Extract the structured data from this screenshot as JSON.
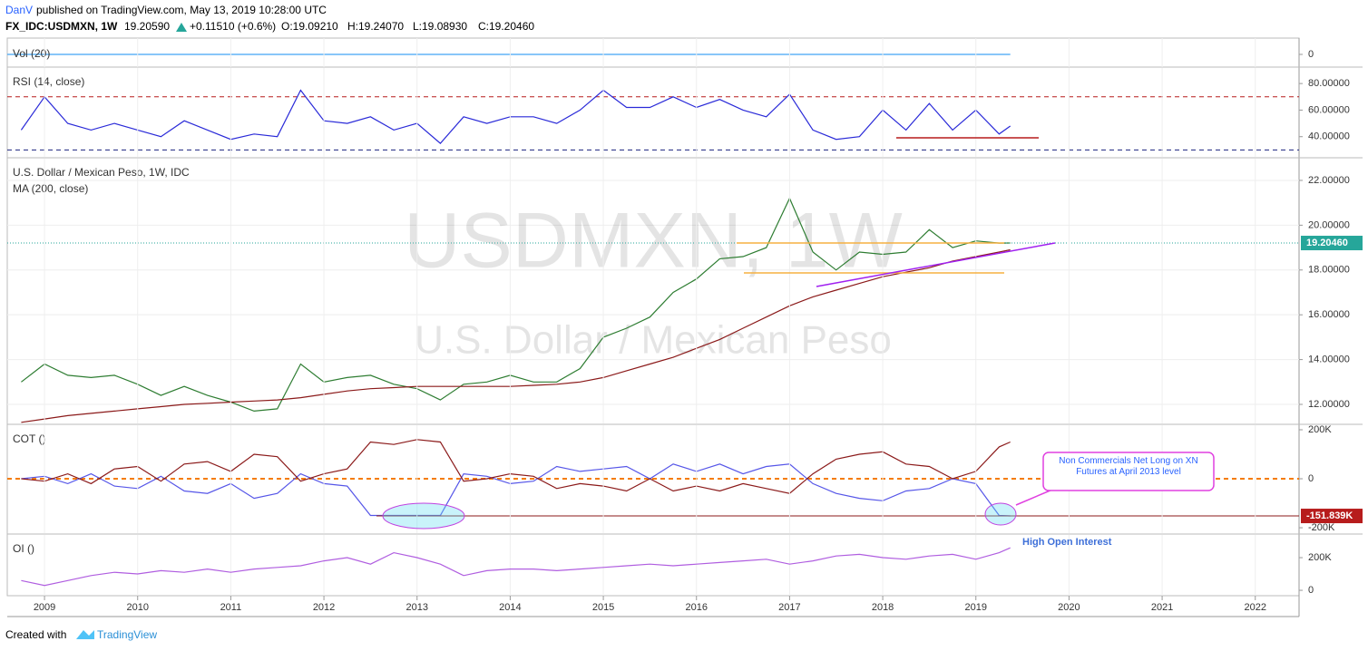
{
  "header": {
    "author": "DanV",
    "published": "published on TradingView.com, May 13, 2019 10:28:00 UTC",
    "symbol": "FX_IDC:USDMXN, 1W",
    "price": "19.20590",
    "change": "+0.11510 (+0.6%)",
    "open": "O:19.09210",
    "high": "H:19.24070",
    "low": "L:19.08930",
    "close": "C:19.20460"
  },
  "footer": {
    "prefix": "Created with",
    "brand": "TradingView"
  },
  "chart_data": [
    {
      "type": "line",
      "title": "Vol (20)",
      "xlim": [
        2008.6,
        2022.47
      ],
      "ylim": [
        -14,
        18
      ],
      "yticks": [
        0
      ],
      "series": [
        {
          "color": "#42a5f5",
          "x": [
            2008.6,
            2019.37
          ],
          "values": [
            0,
            0
          ]
        }
      ]
    },
    {
      "type": "line",
      "title": "RSI (14, close)",
      "xlim": [
        2008.6,
        2022.47
      ],
      "ylim": [
        24.8,
        91.7
      ],
      "yticks": [
        {
          "value": 40,
          "label": "40.00000"
        },
        {
          "value": 60,
          "label": "60.00000"
        },
        {
          "value": 80,
          "label": "80.00000"
        }
      ],
      "levels": [
        70,
        30
      ],
      "level_colors": [
        "#b71c1c",
        "#1a237e"
      ],
      "series": [
        {
          "color": "#2a2ad8",
          "x": [
            2008.75,
            2009,
            2009.25,
            2009.5,
            2009.75,
            2010,
            2010.25,
            2010.5,
            2010.75,
            2011,
            2011.25,
            2011.5,
            2011.75,
            2012,
            2012.25,
            2012.5,
            2012.75,
            2013,
            2013.25,
            2013.5,
            2013.75,
            2014,
            2014.25,
            2014.5,
            2014.75,
            2015,
            2015.25,
            2015.5,
            2015.75,
            2016,
            2016.25,
            2016.5,
            2016.75,
            2017,
            2017.25,
            2017.5,
            2017.75,
            2018,
            2018.25,
            2018.5,
            2018.75,
            2019,
            2019.25,
            2019.37
          ],
          "values": [
            45,
            70,
            50,
            45,
            50,
            45,
            40,
            52,
            45,
            38,
            42,
            40,
            75,
            52,
            50,
            55,
            45,
            50,
            35,
            55,
            50,
            55,
            55,
            50,
            60,
            75,
            62,
            62,
            70,
            62,
            68,
            60,
            55,
            72,
            45,
            38,
            40,
            60,
            45,
            65,
            45,
            60,
            42,
            48
          ]
        }
      ]
    },
    {
      "type": "line",
      "title": "U.S. Dollar / Mexican Peso, 1W, IDC",
      "subtitle": "MA (200, close)",
      "watermark": [
        "USDMXN, 1W",
        "U.S. Dollar / Mexican Peso"
      ],
      "xlim": [
        2008.6,
        2022.47
      ],
      "ylim": [
        11.15,
        22.97
      ],
      "yticks": [
        {
          "value": 12,
          "label": "12.00000"
        },
        {
          "value": 14,
          "label": "14.00000"
        },
        {
          "value": 16,
          "label": "16.00000"
        },
        {
          "value": 18,
          "label": "18.00000"
        },
        {
          "value": 20,
          "label": "20.00000"
        },
        {
          "value": 22,
          "label": "22.00000"
        }
      ],
      "grid": true,
      "last_value": 19.2046,
      "last_value_label": "19.20460",
      "series": [
        {
          "color": "#2e7d32",
          "x": [
            2008.75,
            2009,
            2009.25,
            2009.5,
            2009.75,
            2010,
            2010.25,
            2010.5,
            2010.75,
            2011,
            2011.25,
            2011.5,
            2011.75,
            2012,
            2012.25,
            2012.5,
            2012.75,
            2013,
            2013.25,
            2013.5,
            2013.75,
            2014,
            2014.25,
            2014.5,
            2014.75,
            2015,
            2015.25,
            2015.5,
            2015.75,
            2016,
            2016.25,
            2016.5,
            2016.75,
            2017,
            2017.25,
            2017.5,
            2017.75,
            2018,
            2018.25,
            2018.5,
            2018.75,
            2019,
            2019.25,
            2019.37
          ],
          "values": [
            13.0,
            13.8,
            13.3,
            13.2,
            13.3,
            12.9,
            12.4,
            12.8,
            12.4,
            12.1,
            11.7,
            11.8,
            13.8,
            13.0,
            13.2,
            13.3,
            12.9,
            12.7,
            12.2,
            12.9,
            13.0,
            13.3,
            13.0,
            13.0,
            13.6,
            15.0,
            15.4,
            15.9,
            17.0,
            17.6,
            18.5,
            18.6,
            19.0,
            21.2,
            18.8,
            18.0,
            18.8,
            18.7,
            18.8,
            19.8,
            19.0,
            19.3,
            19.2,
            19.2046
          ]
        },
        {
          "color": "#8b1a1a",
          "x": [
            2008.75,
            2009,
            2009.25,
            2009.5,
            2009.75,
            2010,
            2010.25,
            2010.5,
            2010.75,
            2011,
            2011.25,
            2011.5,
            2011.75,
            2012,
            2012.25,
            2012.5,
            2012.75,
            2013,
            2013.25,
            2013.5,
            2013.75,
            2014,
            2014.25,
            2014.5,
            2014.75,
            2015,
            2015.25,
            2015.5,
            2015.75,
            2016,
            2016.25,
            2016.5,
            2016.75,
            2017,
            2017.25,
            2017.5,
            2017.75,
            2018,
            2018.25,
            2018.5,
            2018.75,
            2019,
            2019.25,
            2019.37
          ],
          "values": [
            11.2,
            11.35,
            11.5,
            11.6,
            11.7,
            11.8,
            11.9,
            12.0,
            12.05,
            12.1,
            12.15,
            12.2,
            12.3,
            12.45,
            12.6,
            12.7,
            12.75,
            12.8,
            12.8,
            12.8,
            12.8,
            12.8,
            12.85,
            12.9,
            13.0,
            13.2,
            13.5,
            13.8,
            14.1,
            14.5,
            14.9,
            15.4,
            15.9,
            16.4,
            16.8,
            17.1,
            17.4,
            17.7,
            17.9,
            18.1,
            18.4,
            18.6,
            18.8,
            18.9
          ]
        }
      ]
    },
    {
      "type": "line",
      "title": "COT ()",
      "annotation": "Non Commercials Net Long on XN Futures at April 2013 level",
      "xlim": [
        2008.6,
        2022.47
      ],
      "ylim": [
        -222000,
        218500
      ],
      "yticks": [
        {
          "value": -200000,
          "label": "-200K"
        },
        0,
        {
          "value": 200000,
          "label": "200K"
        }
      ],
      "levels": [
        0
      ],
      "level_colors": [
        "#f57c00"
      ],
      "last_value": -151839,
      "last_value_label": "-151.839K",
      "series": [
        {
          "color": "#5656e8",
          "x": [
            2008.75,
            2009,
            2009.25,
            2009.5,
            2009.75,
            2010,
            2010.25,
            2010.5,
            2010.75,
            2011,
            2011.25,
            2011.5,
            2011.75,
            2012,
            2012.25,
            2012.5,
            2012.75,
            2013,
            2013.25,
            2013.5,
            2013.75,
            2014,
            2014.25,
            2014.5,
            2014.75,
            2015,
            2015.25,
            2015.5,
            2015.75,
            2016,
            2016.25,
            2016.5,
            2016.75,
            2017,
            2017.25,
            2017.5,
            2017.75,
            2018,
            2018.25,
            2018.5,
            2018.75,
            2019,
            2019.25,
            2019.37
          ],
          "values": [
            0,
            10000,
            -20000,
            20000,
            -30000,
            -40000,
            10000,
            -50000,
            -60000,
            -20000,
            -80000,
            -60000,
            20000,
            -20000,
            -30000,
            -150000,
            -150000,
            -150000,
            -150000,
            20000,
            10000,
            -20000,
            -10000,
            50000,
            30000,
            40000,
            50000,
            0,
            60000,
            30000,
            60000,
            20000,
            50000,
            60000,
            -20000,
            -60000,
            -80000,
            -90000,
            -50000,
            -40000,
            0,
            -20000,
            -150000,
            -151839
          ]
        },
        {
          "color": "#8b1a1a",
          "x": [
            2008.75,
            2009,
            2009.25,
            2009.5,
            2009.75,
            2010,
            2010.25,
            2010.5,
            2010.75,
            2011,
            2011.25,
            2011.5,
            2011.75,
            2012,
            2012.25,
            2012.5,
            2012.75,
            2013,
            2013.25,
            2013.5,
            2013.75,
            2014,
            2014.25,
            2014.5,
            2014.75,
            2015,
            2015.25,
            2015.5,
            2015.75,
            2016,
            2016.25,
            2016.5,
            2016.75,
            2017,
            2017.25,
            2017.5,
            2017.75,
            2018,
            2018.25,
            2018.5,
            2018.75,
            2019,
            2019.25,
            2019.37
          ],
          "values": [
            0,
            -10000,
            20000,
            -20000,
            40000,
            50000,
            -10000,
            60000,
            70000,
            30000,
            100000,
            90000,
            -10000,
            20000,
            40000,
            150000,
            140000,
            160000,
            150000,
            -10000,
            0,
            20000,
            10000,
            -40000,
            -20000,
            -30000,
            -50000,
            0,
            -50000,
            -30000,
            -50000,
            -20000,
            -40000,
            -60000,
            20000,
            80000,
            100000,
            110000,
            60000,
            50000,
            0,
            30000,
            130000,
            150000
          ]
        }
      ]
    },
    {
      "type": "line",
      "title": "OI ()",
      "annotation": "High Open Interest",
      "xlim": [
        2008.6,
        2022.47
      ],
      "ylim": [
        -33000,
        339000
      ],
      "yticks": [
        0,
        {
          "value": 200000,
          "label": "200K"
        }
      ],
      "xticks": [
        2009,
        2010,
        2011,
        2012,
        2013,
        2014,
        2015,
        2016,
        2017,
        2018,
        2019,
        2020,
        2021,
        2022
      ],
      "series": [
        {
          "color": "#b05ee0",
          "x": [
            2008.75,
            2009,
            2009.25,
            2009.5,
            2009.75,
            2010,
            2010.25,
            2010.5,
            2010.75,
            2011,
            2011.25,
            2011.5,
            2011.75,
            2012,
            2012.25,
            2012.5,
            2012.75,
            2013,
            2013.25,
            2013.5,
            2013.75,
            2014,
            2014.25,
            2014.5,
            2014.75,
            2015,
            2015.25,
            2015.5,
            2015.75,
            2016,
            2016.25,
            2016.5,
            2016.75,
            2017,
            2017.25,
            2017.5,
            2017.75,
            2018,
            2018.25,
            2018.5,
            2018.75,
            2019,
            2019.25,
            2019.37
          ],
          "values": [
            60000,
            30000,
            60000,
            90000,
            110000,
            100000,
            120000,
            110000,
            130000,
            110000,
            130000,
            140000,
            150000,
            180000,
            200000,
            160000,
            230000,
            200000,
            160000,
            90000,
            120000,
            130000,
            130000,
            120000,
            130000,
            140000,
            150000,
            160000,
            150000,
            160000,
            170000,
            180000,
            190000,
            160000,
            180000,
            210000,
            220000,
            200000,
            190000,
            210000,
            220000,
            190000,
            230000,
            260000
          ]
        }
      ]
    }
  ]
}
